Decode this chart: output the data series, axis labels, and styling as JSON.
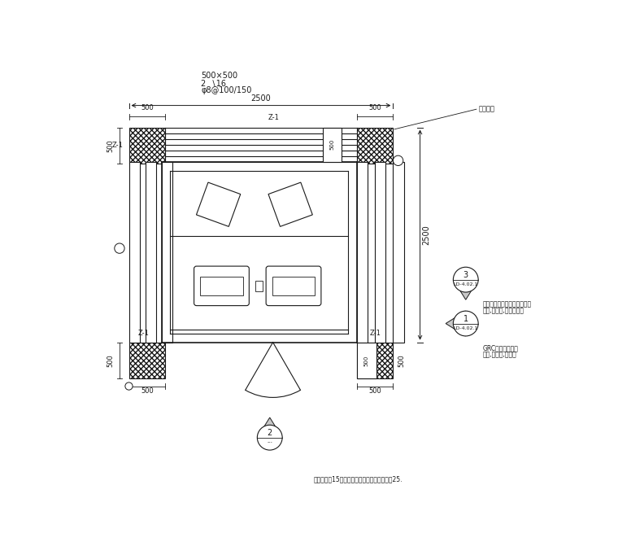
{
  "bg_color": "#ffffff",
  "line_color": "#1a1a1a",
  "fig_width": 7.6,
  "fig_height": 6.82,
  "spec_text1": "500×500",
  "spec_text2": "2  ∖16",
  "spec_text3": "φ8@100/150",
  "annot1": "混凝土结构表面仿花岗岩喂涂",
  "annot1b": "颜色,米白色,与建筑区配",
  "annot2": "GRC表面仿花岗岩",
  "annot2b": "颜色,混黄色,与建筑",
  "pipe_label": "管纳方向",
  "note_text": "注意图示就15，混凝土混凝土层压密度不小于25.",
  "dim_2500": "2500",
  "label_500": "500",
  "label_z1": "Z-1",
  "sym1_num": "1",
  "sym1_ref": "LD-4.02.1",
  "sym2_num": "2",
  "sym2_ref": "---",
  "sym3_num": "3",
  "sym3_ref": "LD-4.02.1"
}
